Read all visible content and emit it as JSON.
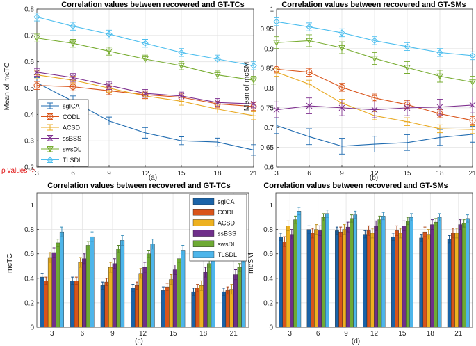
{
  "series_names": [
    "sgICA",
    "CODL",
    "ACSD",
    "ssBSS",
    "swsDL",
    "TLSDL"
  ],
  "colors": {
    "line": [
      "#1f6bb0",
      "#d9541a",
      "#e8a81f",
      "#7e2f8e",
      "#77ac30",
      "#4dbeee"
    ],
    "bar": [
      "#1a63a8",
      "#d9541a",
      "#edb120",
      "#6f2f8a",
      "#6eaa34",
      "#4db5ea"
    ],
    "rho": "#e01010"
  },
  "rho_annotation": "ρ values ->",
  "chart_data": [
    {
      "id": "a",
      "type": "line",
      "title": "Correlation values between recovered and GT-TCs",
      "ylabel": "Mean of mcTC",
      "sublabel": "(a)",
      "categories": [
        3,
        6,
        9,
        12,
        15,
        18,
        21
      ],
      "ylim": [
        0.2,
        0.8
      ],
      "yticks": [
        0.2,
        0.3,
        0.4,
        0.5,
        0.6,
        0.7,
        0.8
      ],
      "grid": true,
      "legend": "lower-left",
      "series": [
        {
          "name": "sgICA",
          "values": [
            0.52,
            0.45,
            0.375,
            0.33,
            0.3,
            0.295,
            0.265
          ],
          "err": [
            0.02,
            0.02,
            0.015,
            0.02,
            0.015,
            0.015,
            0.02
          ]
        },
        {
          "name": "CODL",
          "values": [
            0.51,
            0.505,
            0.49,
            0.475,
            0.465,
            0.44,
            0.43
          ],
          "err": [
            0.015,
            0.015,
            0.015,
            0.015,
            0.015,
            0.015,
            0.015
          ]
        },
        {
          "name": "ACSD",
          "values": [
            0.55,
            0.53,
            0.5,
            0.47,
            0.45,
            0.42,
            0.395
          ],
          "err": [
            0.015,
            0.015,
            0.015,
            0.015,
            0.015,
            0.015,
            0.015
          ]
        },
        {
          "name": "ssBSS",
          "values": [
            0.56,
            0.54,
            0.51,
            0.48,
            0.47,
            0.445,
            0.44
          ],
          "err": [
            0.015,
            0.015,
            0.015,
            0.015,
            0.015,
            0.015,
            0.015
          ]
        },
        {
          "name": "swsDL",
          "values": [
            0.69,
            0.67,
            0.64,
            0.61,
            0.585,
            0.55,
            0.53
          ],
          "err": [
            0.015,
            0.015,
            0.015,
            0.015,
            0.015,
            0.015,
            0.015
          ]
        },
        {
          "name": "TLSDL",
          "values": [
            0.77,
            0.735,
            0.705,
            0.67,
            0.635,
            0.61,
            0.585
          ],
          "err": [
            0.015,
            0.015,
            0.015,
            0.015,
            0.015,
            0.015,
            0.015
          ]
        }
      ]
    },
    {
      "id": "b",
      "type": "line",
      "title": "Correlation values between recovered and GT-SMs",
      "ylabel": "Mean of mcSM",
      "sublabel": "(b)",
      "categories": [
        3,
        6,
        9,
        12,
        15,
        18,
        21
      ],
      "ylim": [
        0.6,
        1.0
      ],
      "yticks": [
        0.6,
        0.65,
        0.7,
        0.75,
        0.8,
        0.85,
        0.9,
        0.95,
        1
      ],
      "grid": true,
      "series": [
        {
          "name": "sgICA",
          "values": [
            0.705,
            0.677,
            0.653,
            0.658,
            0.662,
            0.675,
            0.683
          ],
          "err": [
            0.02,
            0.02,
            0.02,
            0.02,
            0.02,
            0.02,
            0.02
          ]
        },
        {
          "name": "CODL",
          "values": [
            0.848,
            0.84,
            0.802,
            0.775,
            0.758,
            0.735,
            0.718
          ],
          "err": [
            0.01,
            0.01,
            0.01,
            0.01,
            0.01,
            0.01,
            0.01
          ]
        },
        {
          "name": "ACSD",
          "values": [
            0.84,
            0.81,
            0.762,
            0.73,
            0.715,
            0.697,
            0.695
          ],
          "err": [
            0.01,
            0.01,
            0.01,
            0.01,
            0.01,
            0.01,
            0.01
          ]
        },
        {
          "name": "ssBSS",
          "values": [
            0.745,
            0.755,
            0.75,
            0.745,
            0.75,
            0.752,
            0.757
          ],
          "err": [
            0.02,
            0.02,
            0.02,
            0.02,
            0.02,
            0.02,
            0.02
          ]
        },
        {
          "name": "swsDL",
          "values": [
            0.915,
            0.92,
            0.902,
            0.875,
            0.852,
            0.83,
            0.815
          ],
          "err": [
            0.015,
            0.015,
            0.015,
            0.015,
            0.015,
            0.015,
            0.015
          ]
        },
        {
          "name": "TLSDL",
          "values": [
            0.968,
            0.955,
            0.94,
            0.92,
            0.905,
            0.89,
            0.882
          ],
          "err": [
            0.01,
            0.01,
            0.01,
            0.01,
            0.01,
            0.01,
            0.01
          ]
        }
      ]
    },
    {
      "id": "c",
      "type": "bar",
      "title": "Correlation values between recovered and GT-TCs",
      "ylabel": "mcTC",
      "sublabel": "(c)",
      "categories": [
        3,
        6,
        9,
        12,
        15,
        18,
        21
      ],
      "ylim": [
        0,
        1.1
      ],
      "yticks": [
        0,
        0.2,
        0.4,
        0.6,
        0.8,
        1
      ],
      "grid": true,
      "legend": "top-right",
      "series": [
        {
          "name": "sgICA",
          "values": [
            0.41,
            0.38,
            0.34,
            0.32,
            0.3,
            0.29,
            0.29
          ],
          "err": [
            0.03,
            0.03,
            0.03,
            0.03,
            0.03,
            0.03,
            0.03
          ]
        },
        {
          "name": "CODL",
          "values": [
            0.38,
            0.38,
            0.37,
            0.34,
            0.33,
            0.32,
            0.3
          ],
          "err": [
            0.03,
            0.03,
            0.03,
            0.03,
            0.03,
            0.03,
            0.03
          ]
        },
        {
          "name": "ACSD",
          "values": [
            0.57,
            0.53,
            0.49,
            0.44,
            0.39,
            0.34,
            0.31
          ],
          "err": [
            0.04,
            0.04,
            0.04,
            0.04,
            0.04,
            0.04,
            0.04
          ]
        },
        {
          "name": "ssBSS",
          "values": [
            0.61,
            0.56,
            0.52,
            0.49,
            0.47,
            0.45,
            0.43
          ],
          "err": [
            0.04,
            0.04,
            0.04,
            0.04,
            0.04,
            0.04,
            0.04
          ]
        },
        {
          "name": "swsDL",
          "values": [
            0.69,
            0.67,
            0.64,
            0.6,
            0.56,
            0.52,
            0.49
          ],
          "err": [
            0.03,
            0.03,
            0.03,
            0.03,
            0.03,
            0.03,
            0.03
          ]
        },
        {
          "name": "TLSDL",
          "values": [
            0.78,
            0.74,
            0.71,
            0.68,
            0.63,
            0.6,
            0.57
          ],
          "err": [
            0.04,
            0.04,
            0.04,
            0.04,
            0.04,
            0.04,
            0.04
          ]
        }
      ]
    },
    {
      "id": "d",
      "type": "bar",
      "title": "Correlation values between recovered and GT-SMs",
      "ylabel": "mcSM",
      "sublabel": "(d)",
      "categories": [
        3,
        6,
        9,
        12,
        15,
        18,
        21
      ],
      "ylim": [
        0,
        1.1
      ],
      "yticks": [
        0,
        0.2,
        0.4,
        0.6,
        0.8,
        1
      ],
      "grid": true,
      "series": [
        {
          "name": "sgICA",
          "values": [
            0.74,
            0.8,
            0.79,
            0.76,
            0.74,
            0.73,
            0.72
          ],
          "err": [
            0.03,
            0.03,
            0.03,
            0.03,
            0.03,
            0.03,
            0.03
          ]
        },
        {
          "name": "CODL",
          "values": [
            0.7,
            0.77,
            0.78,
            0.79,
            0.79,
            0.78,
            0.77
          ],
          "err": [
            0.04,
            0.04,
            0.04,
            0.04,
            0.04,
            0.04,
            0.04
          ]
        },
        {
          "name": "ACSD",
          "values": [
            0.83,
            0.8,
            0.8,
            0.77,
            0.77,
            0.76,
            0.77
          ],
          "err": [
            0.04,
            0.04,
            0.04,
            0.04,
            0.04,
            0.04,
            0.04
          ]
        },
        {
          "name": "ssBSS",
          "values": [
            0.76,
            0.79,
            0.82,
            0.83,
            0.83,
            0.84,
            0.84
          ],
          "err": [
            0.04,
            0.04,
            0.04,
            0.04,
            0.04,
            0.04,
            0.04
          ]
        },
        {
          "name": "swsDL",
          "values": [
            0.88,
            0.9,
            0.89,
            0.88,
            0.87,
            0.86,
            0.85
          ],
          "err": [
            0.03,
            0.03,
            0.03,
            0.03,
            0.03,
            0.03,
            0.03
          ]
        },
        {
          "name": "TLSDL",
          "values": [
            0.95,
            0.93,
            0.92,
            0.91,
            0.9,
            0.9,
            0.89
          ],
          "err": [
            0.03,
            0.03,
            0.03,
            0.03,
            0.03,
            0.03,
            0.03
          ]
        }
      ]
    }
  ]
}
